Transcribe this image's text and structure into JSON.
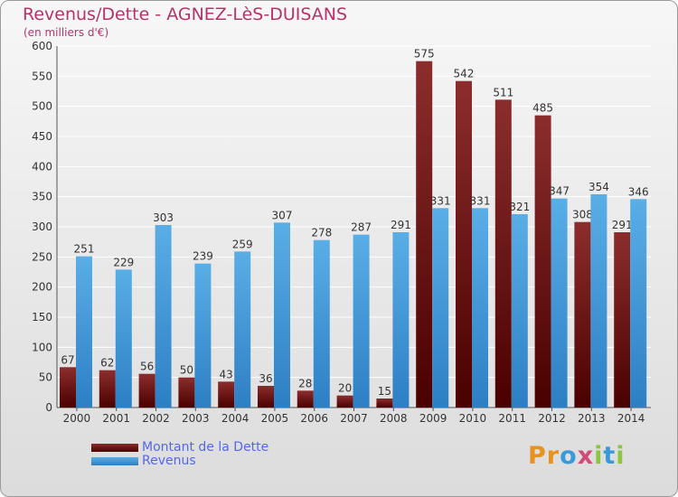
{
  "title": "Revenus/Dette - AGNEZ-LèS-DUISANS",
  "subtitle": "(en milliers d'€)",
  "logo_text": "Proxiti",
  "colors": {
    "dette_dark": "#4a0000",
    "dette_light": "#8c2d2d",
    "revenus_dark": "#2d7fc4",
    "revenus_light": "#5aaee6",
    "grid": "#ffffff",
    "title": "#b5336b",
    "legend_text": "#5566ee"
  },
  "chart_data": {
    "type": "bar",
    "title": "Revenus/Dette - AGNEZ-LèS-DUISANS",
    "subtitle": "(en milliers d'€)",
    "categories": [
      "2000",
      "2001",
      "2002",
      "2003",
      "2004",
      "2005",
      "2006",
      "2007",
      "2008",
      "2009",
      "2010",
      "2011",
      "2012",
      "2013",
      "2014"
    ],
    "series": [
      {
        "name": "Montant de la Dette",
        "values": [
          67,
          62,
          56,
          50,
          43,
          36,
          28,
          20,
          15,
          575,
          542,
          511,
          485,
          308,
          291
        ]
      },
      {
        "name": "Revenus",
        "values": [
          251,
          229,
          303,
          239,
          259,
          307,
          278,
          287,
          291,
          331,
          331,
          321,
          347,
          354,
          346
        ]
      }
    ],
    "ylim": [
      0,
      600
    ],
    "yticks": [
      0,
      50,
      100,
      150,
      200,
      250,
      300,
      350,
      400,
      450,
      500,
      550,
      600
    ],
    "grid": true,
    "legend": "bottom-left"
  }
}
